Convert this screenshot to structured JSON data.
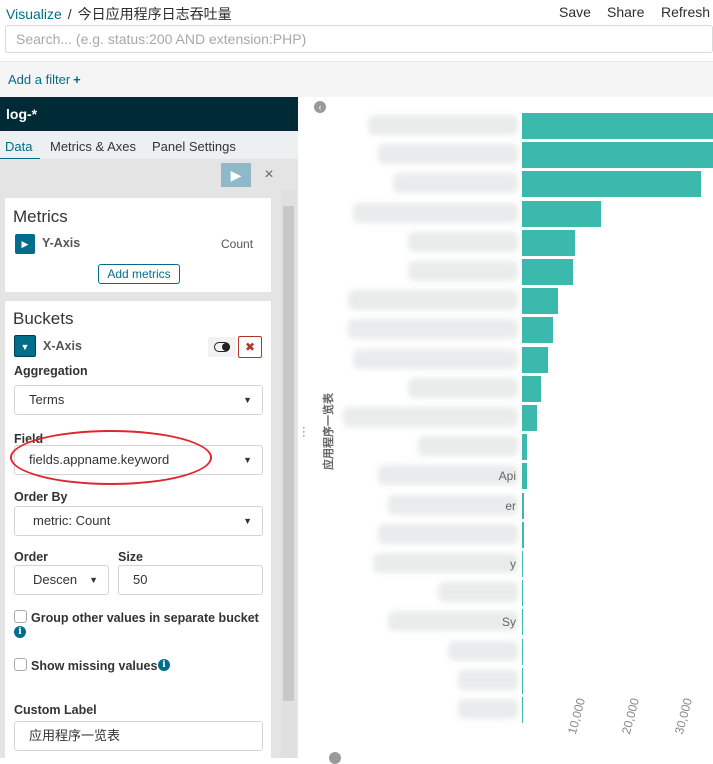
{
  "header": {
    "breadcrumb_root": "Visualize",
    "breadcrumb_separator": "/",
    "title": "今日应用程序日志吞吐量",
    "save_label": "Save",
    "share_label": "Share",
    "refresh_label": "Refresh"
  },
  "search": {
    "placeholder": "Search... (e.g. status:200 AND extension:PHP)",
    "value": ""
  },
  "filters": {
    "add_filter_label": "Add a filter",
    "add_filter_icon": "+"
  },
  "sidebar": {
    "index_pattern": "log-*",
    "tabs": [
      {
        "label": "Data"
      },
      {
        "label": "Metrics & Axes"
      },
      {
        "label": "Panel Settings"
      }
    ],
    "active_tab": "Data",
    "apply_icon": "▶",
    "discard_icon": "×",
    "metrics": {
      "title": "Metrics",
      "items": [
        {
          "axis": "Y-Axis",
          "aggregation": "Count"
        }
      ],
      "add_metrics_label": "Add metrics"
    },
    "buckets": {
      "title": "Buckets",
      "bucket": {
        "axis": "X-Axis",
        "aggregation_label": "Aggregation",
        "aggregation_value": "Terms",
        "field_label": "Field",
        "field_value": "fields.appname.keyword",
        "order_by_label": "Order By",
        "order_by_value": "metric: Count",
        "order_label": "Order",
        "order_value": "Descending",
        "order_value_display": "Descen",
        "size_label": "Size",
        "size_value": "50",
        "group_other_label": "Group other values in separate bucket",
        "group_other_checked": false,
        "show_missing_label": "Show missing values",
        "show_missing_checked": false,
        "custom_label_label": "Custom Label",
        "custom_label_value": "应用程序一览表"
      }
    }
  },
  "chart_data": {
    "type": "bar",
    "orientation": "horizontal",
    "ylabel": "应用程序一览表",
    "xlabel": "",
    "x_ticks": [
      "10,000",
      "20,000",
      "30,000"
    ],
    "xlim": [
      0,
      36000
    ],
    "categories": [
      "",
      "",
      "",
      "",
      "",
      "",
      "",
      "",
      "",
      "",
      "",
      "",
      "",
      "",
      "",
      "",
      "",
      "",
      "",
      "",
      ""
    ],
    "category_fragments": [
      "",
      "",
      "",
      "",
      "",
      "",
      "",
      "",
      "",
      "",
      "",
      "",
      "Api",
      "er",
      "",
      "y",
      "",
      "Sy",
      "",
      "",
      ""
    ],
    "values": [
      36000,
      36000,
      33500,
      14800,
      10000,
      9600,
      6800,
      5800,
      4800,
      3600,
      2800,
      1000,
      850,
      450,
      400,
      250,
      180,
      120,
      80,
      50,
      30
    ],
    "color": "#3cb9ad"
  }
}
